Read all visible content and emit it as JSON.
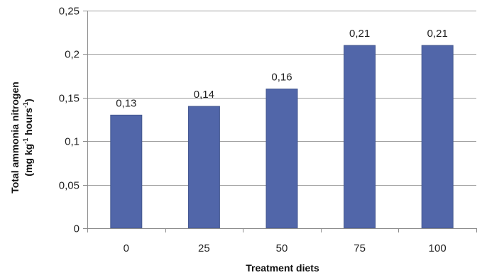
{
  "chart_data": {
    "type": "bar",
    "categories": [
      "0",
      "25",
      "50",
      "75",
      "100"
    ],
    "values": [
      0.13,
      0.14,
      0.16,
      0.21,
      0.21
    ],
    "data_labels": [
      "0,13",
      "0,14",
      "0,16",
      "0,21",
      "0,21"
    ],
    "title": "",
    "xlabel": "Treatment diets",
    "ylabel": {
      "line1": "Total ammonia nitrogen",
      "line2_prefix": "(mg kg",
      "line2_sup1": "-1",
      "line2_middle": " hours",
      "line2_sup2": "-1",
      "line2_suffix": ")"
    },
    "ylim": [
      0,
      0.25
    ],
    "yticks": [
      0,
      0.05,
      0.1,
      0.15,
      0.2,
      0.25
    ],
    "ytick_labels": [
      "0",
      "0,05",
      "0,1",
      "0,15",
      "0,2",
      "0,25"
    ],
    "grid": true,
    "legend": "none",
    "colors": {
      "bar": "#5166a9",
      "bar_edge": "#44578f",
      "grid": "#9e9e9e",
      "axis": "#8c8c8c"
    }
  }
}
